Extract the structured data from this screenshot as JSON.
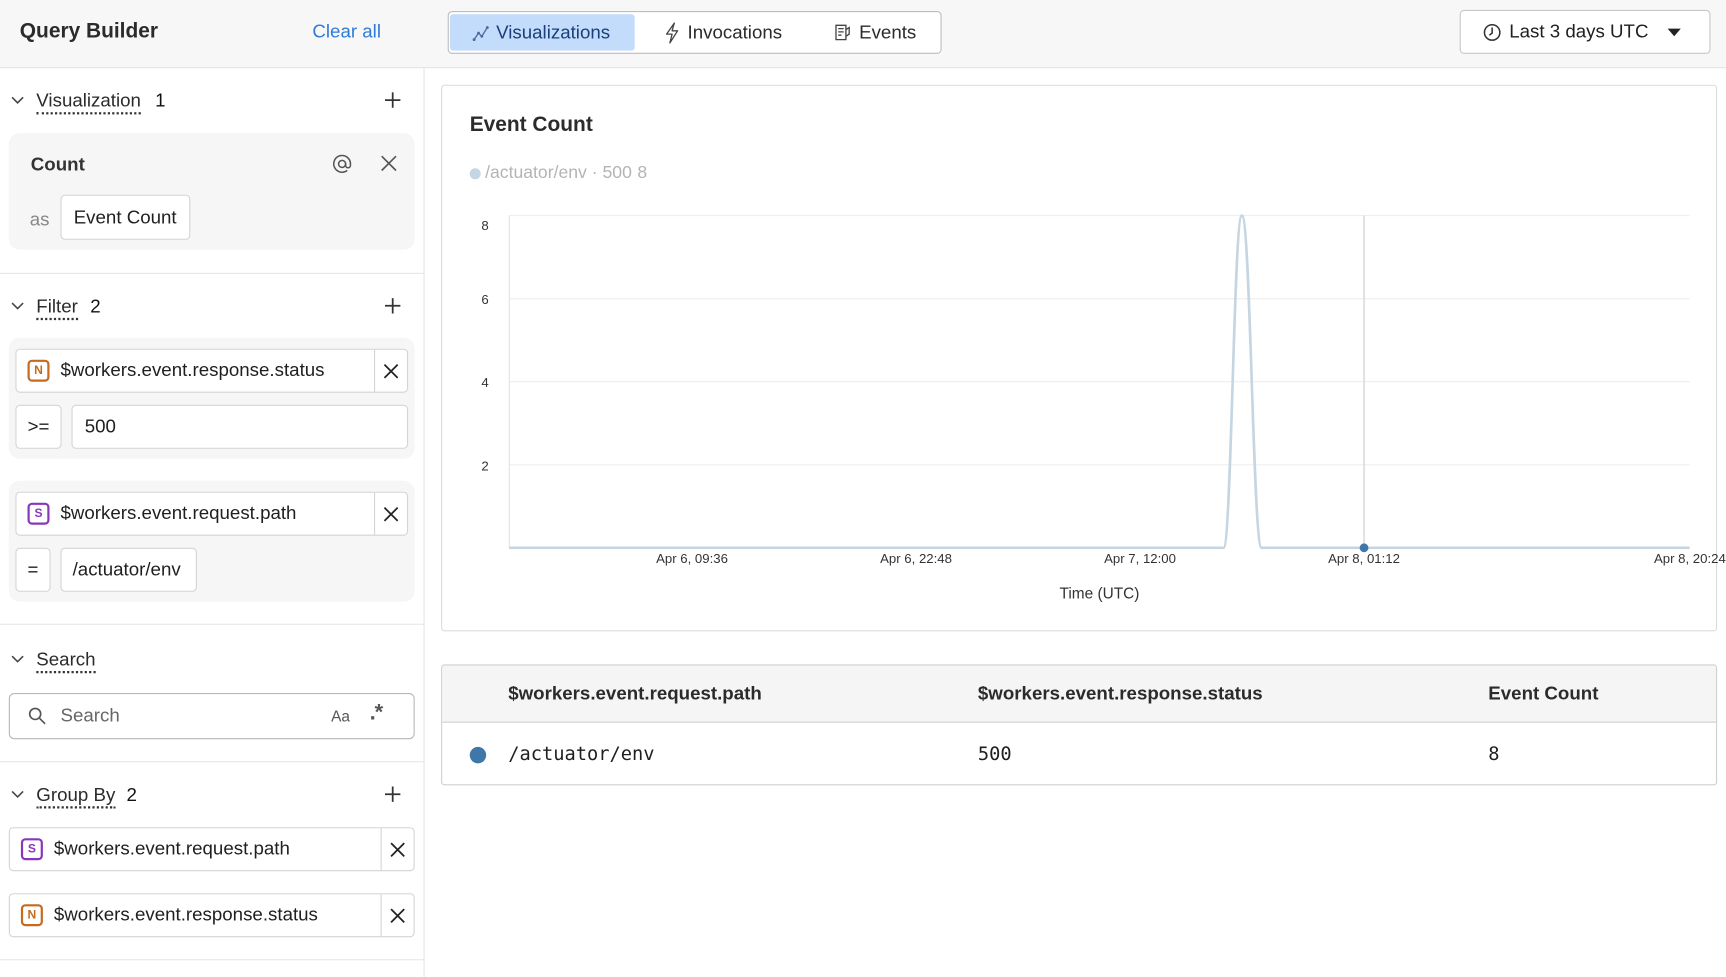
{
  "sidebar": {
    "title": "Query Builder",
    "clear_all": "Clear all",
    "visualization": {
      "label": "Visualization",
      "count": "1",
      "items": [
        {
          "function": "Count",
          "as_label": "as",
          "alias": "Event Count"
        }
      ]
    },
    "filter": {
      "label": "Filter",
      "count": "2",
      "items": [
        {
          "type_badge": "N",
          "field": "$workers.event.response.status",
          "operator": ">=",
          "value": "500"
        },
        {
          "type_badge": "S",
          "field": "$workers.event.request.path",
          "operator": "=",
          "value": "/actuator/env"
        }
      ]
    },
    "search": {
      "label": "Search",
      "placeholder": "Search",
      "case_toggle": "Aa",
      "regex_toggle": ".*"
    },
    "group_by": {
      "label": "Group By",
      "count": "2",
      "items": [
        {
          "type_badge": "S",
          "field": "$workers.event.request.path"
        },
        {
          "type_badge": "N",
          "field": "$workers.event.response.status"
        }
      ]
    }
  },
  "topbar": {
    "tabs": [
      {
        "label": "Visualizations",
        "icon": "line-chart-icon",
        "active": true
      },
      {
        "label": "Invocations",
        "icon": "lightning-icon",
        "active": false
      },
      {
        "label": "Events",
        "icon": "document-icon",
        "active": false
      }
    ],
    "time_range": "Last 3 days UTC"
  },
  "chart_data": {
    "type": "line",
    "title": "Event Count",
    "legend": {
      "entries": [
        {
          "label": "/actuator/env · 500",
          "value": "8"
        }
      ],
      "placement": "top-left"
    },
    "xlabel": "Time (UTC)",
    "ylabel": "",
    "xlim": [
      "Apr 5, 22:50",
      "Apr 8, 20:23"
    ],
    "ylim": [
      0,
      8
    ],
    "yticks": [
      2,
      4,
      6,
      8
    ],
    "xticks": [
      "Apr 6, 09:36",
      "Apr 6, 22:48",
      "Apr 7, 12:00",
      "Apr 8, 01:12",
      "Apr 8, 20:24"
    ],
    "grid": true,
    "crosshair_x": "Apr 8, 01:12",
    "series": [
      {
        "name": "/actuator/env · 500",
        "color": "#c5d5e2",
        "points": [
          [
            "Apr 5, 22:50",
            0
          ],
          [
            "Apr 7, 16:55",
            0
          ],
          [
            "Apr 7, 18:00",
            8
          ],
          [
            "Apr 7, 19:10",
            0
          ],
          [
            "Apr 8, 20:23",
            0
          ]
        ]
      }
    ]
  },
  "table": {
    "columns": [
      "$workers.event.request.path",
      "$workers.event.response.status",
      "Event Count"
    ],
    "rows": [
      {
        "color": "#3f78a8",
        "cells": [
          "/actuator/env",
          "500",
          "8"
        ]
      }
    ]
  },
  "colors": {
    "accent": "#2f7bd8",
    "active_tab": "#c3dcfc",
    "series_dot": "#3f78a8"
  }
}
